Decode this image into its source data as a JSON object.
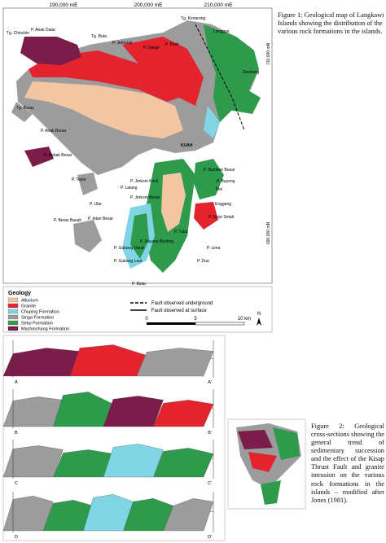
{
  "figure1": {
    "caption": "Figure 1: Geological map of Langkawi Islands showing the distribution of the various rock formations in the islands.",
    "eastings": [
      "190,000 mE",
      "200,000 mE",
      "210,000 mE"
    ],
    "northings": [
      "710,000 mN",
      "690,000 mN"
    ],
    "places": [
      "Tg. Chinchin",
      "P. Anak Datai",
      "Tg. Buta",
      "P. Jemuruk",
      "P. Dangli",
      "P. Pasir",
      "Tg. Kenarong",
      "Langgun",
      "Deedang",
      "KUAH",
      "P. Rebak Besar",
      "P. Tepor",
      "P. Ular",
      "P. Lalang",
      "P. Jerkom Kecil",
      "P. Jerkom Besar",
      "P. Intan Besar",
      "P. Beras Basah",
      "P. Gubang Darat",
      "P. Gubang Laut",
      "P. Dayang Bunting",
      "P. Tuba",
      "P. Bumbon Besar",
      "P. Buyong",
      "Tiloi",
      "Enggang",
      "P. Nyior Setali",
      "P. Lima",
      "P. Dua",
      "P. Balar",
      "P. Anak Burau",
      "Tg. Burau"
    ],
    "legend": {
      "title": "Geology",
      "units": [
        {
          "name": "Alluvium",
          "color": "#f3c6a3"
        },
        {
          "name": "Granite",
          "color": "#e3242f"
        },
        {
          "name": "Chuping Formation",
          "color": "#7fd5e3"
        },
        {
          "name": "Singa Formation",
          "color": "#9c9c9c"
        },
        {
          "name": "Setul Formation",
          "color": "#2e9b4c"
        },
        {
          "name": "Machinchang Formation",
          "color": "#7b1c4b"
        }
      ],
      "faults": [
        "Fault observed underground",
        "Fault observed at surface"
      ]
    },
    "scale": [
      "0",
      "5",
      "10 km"
    ],
    "north": "N"
  },
  "figure2": {
    "caption": "Figure 2: Geological cross-sections showing the general trend of sedimentary succession and the effect of the Kisap Thrust Fault and granite intrusion on the various rock formations in the islands – modified after Jones (1981).",
    "section_ends": [
      "A",
      "A'",
      "B",
      "B'",
      "C",
      "C'",
      "D",
      "D'"
    ]
  }
}
